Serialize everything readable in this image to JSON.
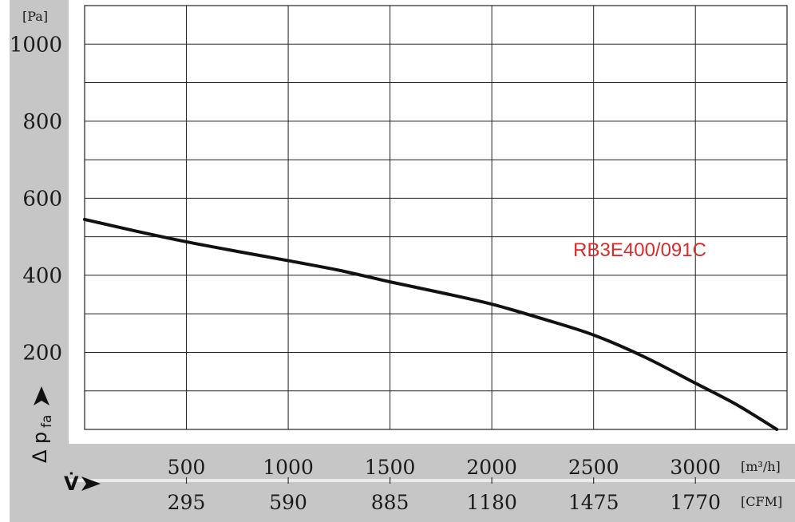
{
  "chart_data": {
    "type": "line",
    "title": "",
    "ylabel": "Δ p",
    "ylabel_sub": "fa",
    "xlabel": "V̇",
    "y_unit": "[Pa]",
    "x_unit_primary": "[m³/h]",
    "x_unit_secondary": "[CFM]",
    "ylim": [
      0,
      1100
    ],
    "xlim": [
      0,
      3450
    ],
    "grid": true,
    "y_ticks": [
      {
        "value": 200,
        "label": "200"
      },
      {
        "value": 400,
        "label": "400"
      },
      {
        "value": 600,
        "label": "600"
      },
      {
        "value": 800,
        "label": "800"
      },
      {
        "value": 1000,
        "label": "1000"
      }
    ],
    "x_ticks": [
      {
        "value": 500,
        "label": "500",
        "label2": "295"
      },
      {
        "value": 1000,
        "label": "1000",
        "label2": "590"
      },
      {
        "value": 1500,
        "label": "1500",
        "label2": "885"
      },
      {
        "value": 2000,
        "label": "2000",
        "label2": "1180"
      },
      {
        "value": 2500,
        "label": "2500",
        "label2": "1475"
      },
      {
        "value": 3000,
        "label": "3000",
        "label2": "1770"
      }
    ],
    "series": [
      {
        "name": "RB3E400/091C",
        "color": "#111111",
        "x": [
          0,
          250,
          500,
          750,
          1000,
          1250,
          1500,
          1750,
          2000,
          2250,
          2500,
          2750,
          3000,
          3200,
          3400
        ],
        "y": [
          545,
          515,
          487,
          462,
          438,
          413,
          383,
          355,
          325,
          287,
          245,
          188,
          120,
          65,
          0
        ]
      }
    ],
    "annotations": [
      {
        "text": "RB3E400/091C",
        "color": "#d92b2b",
        "x": 2400,
        "y": 450
      }
    ]
  }
}
